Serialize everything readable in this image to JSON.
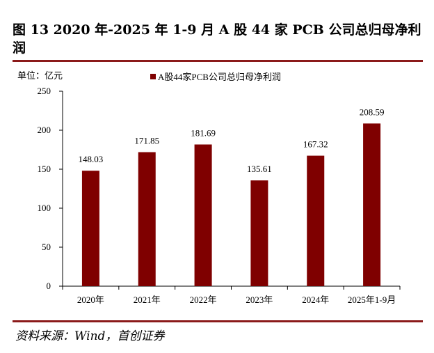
{
  "figure": {
    "title": "图 13 2020 年-2025 年 1-9 月 A 股 44 家 PCB 公司总归母净利润",
    "source": "资料来源：Wind，首创证券"
  },
  "chart_data": {
    "type": "bar",
    "unit_label": "单位：亿元",
    "categories": [
      "2020年",
      "2021年",
      "2022年",
      "2023年",
      "2024年",
      "2025年1-9月"
    ],
    "series": [
      {
        "name": "A股44家PCB公司总归母净利润",
        "values": [
          148.03,
          171.85,
          181.69,
          135.61,
          167.32,
          208.59
        ],
        "color": "#7f0000"
      }
    ],
    "data_labels": [
      "148.03",
      "171.85",
      "181.69",
      "135.61",
      "167.32",
      "208.59"
    ],
    "ylim": [
      0,
      250
    ],
    "yticks": [
      0,
      50,
      100,
      150,
      200,
      250
    ],
    "legend_position": "top",
    "grid": false
  }
}
